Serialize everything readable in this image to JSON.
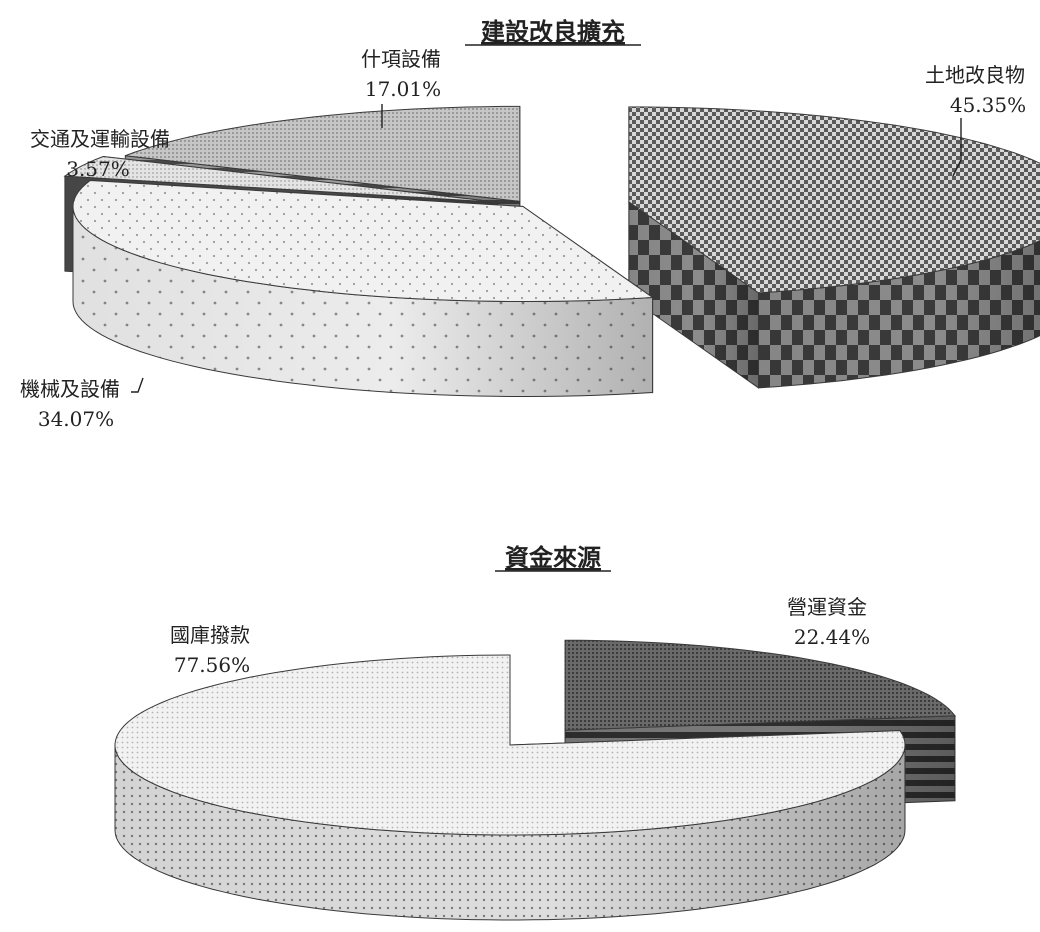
{
  "chart_data": [
    {
      "type": "pie",
      "title": "建設改良擴充",
      "slices": [
        {
          "label": "土地改良物",
          "value": 45.35,
          "value_label": "45.35%",
          "pattern": "checker"
        },
        {
          "label": "機械及設備",
          "value": 34.07,
          "value_label": "34.07%",
          "pattern": "dots"
        },
        {
          "label": "交通及運輸設備",
          "value": 3.57,
          "value_label": "3.57%",
          "pattern": "dark"
        },
        {
          "label": "什項設備",
          "value": 17.01,
          "value_label": "17.01%",
          "pattern": "fine"
        }
      ]
    },
    {
      "type": "pie",
      "title": "資金來源",
      "slices": [
        {
          "label": "營運資金",
          "value": 22.44,
          "value_label": "22.44%",
          "pattern": "darkfine"
        },
        {
          "label": "國庫撥款",
          "value": 77.56,
          "value_label": "77.56%",
          "pattern": "lightdots"
        }
      ]
    }
  ]
}
